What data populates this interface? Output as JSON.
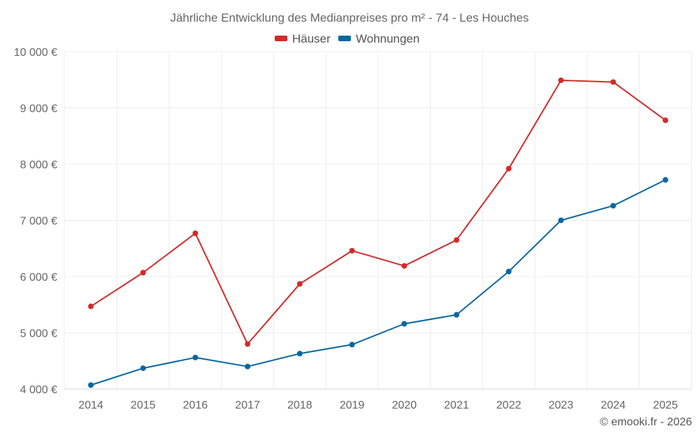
{
  "chart_data": {
    "type": "line",
    "title": "Jährliche Entwicklung des Medianpreises pro m² - 74 - Les Houches",
    "x": [
      "2014",
      "2015",
      "2016",
      "2017",
      "2018",
      "2019",
      "2020",
      "2021",
      "2022",
      "2023",
      "2024",
      "2025"
    ],
    "y_ticks": [
      "4 000 €",
      "5 000 €",
      "6 000 €",
      "7 000 €",
      "8 000 €",
      "9 000 €",
      "10 000 €"
    ],
    "ylim": [
      4000,
      10000
    ],
    "legend_position": "top-center",
    "grid": true,
    "series": [
      {
        "name": "Häuser",
        "color": "#d42a2a",
        "values": [
          5470,
          6070,
          6770,
          4800,
          5870,
          6460,
          6190,
          6650,
          7920,
          9490,
          9460,
          8780
        ]
      },
      {
        "name": "Wohnungen",
        "color": "#0767a0",
        "values": [
          4070,
          4370,
          4560,
          4400,
          4630,
          4790,
          5160,
          5320,
          6090,
          7000,
          7260,
          7720
        ]
      }
    ]
  },
  "footer": {
    "credit": "© emooki.fr - 2026"
  }
}
